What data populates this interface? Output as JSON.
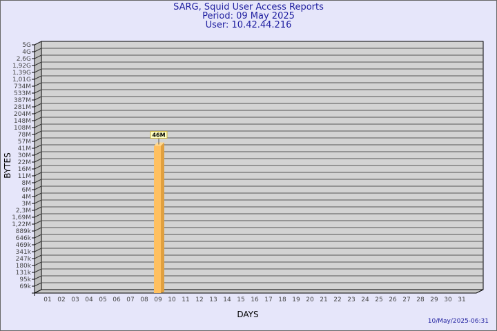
{
  "header": {
    "title": "SARG, Squid User Access Reports",
    "period": "Period: 09 May 2025",
    "user": "User: 10.42.44.216"
  },
  "footer": {
    "generated": "10/May/2025-06:31"
  },
  "chart_data": {
    "type": "bar",
    "xlabel": "DAYS",
    "ylabel": "BYTES",
    "y_scale": "log",
    "grid": true,
    "y_tick_labels": [
      "5G",
      "4G",
      "2,6G",
      "1,92G",
      "1,39G",
      "1,01G",
      "734M",
      "533M",
      "387M",
      "281M",
      "204M",
      "148M",
      "108M",
      "78M",
      "57M",
      "41M",
      "30M",
      "22M",
      "16M",
      "11M",
      "8M",
      "6M",
      "4M",
      "3M",
      "2,3M",
      "1,69M",
      "1,22M",
      "889k",
      "646k",
      "469k",
      "341k",
      "247k",
      "180k",
      "131k",
      "95k",
      "69k"
    ],
    "categories": [
      "01",
      "02",
      "03",
      "04",
      "05",
      "06",
      "07",
      "08",
      "09",
      "10",
      "11",
      "12",
      "13",
      "14",
      "15",
      "16",
      "17",
      "18",
      "19",
      "20",
      "21",
      "22",
      "23",
      "24",
      "25",
      "26",
      "27",
      "28",
      "29",
      "30",
      "31"
    ],
    "bars": [
      {
        "category": "09",
        "value_bytes": 46000000,
        "label": "46M"
      }
    ],
    "colors": {
      "bar": "#ffc060",
      "bar_side": "#e0a040",
      "plot": "#d3d3d3",
      "grid": "#555555",
      "background": "#e6e6fa",
      "title": "#2020a0"
    }
  }
}
